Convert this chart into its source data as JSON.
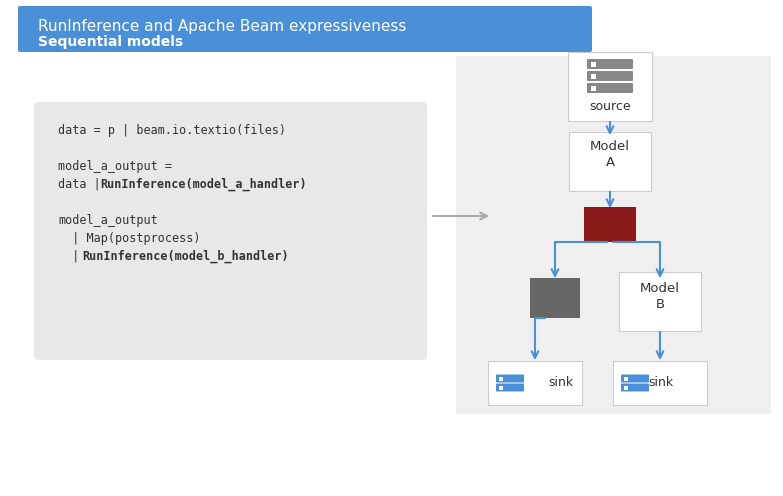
{
  "title_line1": "RunInference and Apache Beam expressiveness",
  "title_line2": "Sequential models",
  "title_bg": "#4A90D9",
  "title_text_color": "#FFFFFF",
  "title_line2_color": "#FFFFFF",
  "main_bg": "#FFFFFF",
  "right_panel_bg": "#EFEFEF",
  "code_bg": "#E8E8E8",
  "code_lines": [
    {
      "text": "data = p | beam.io.textio(files)",
      "bold_parts": []
    },
    {
      "text": "",
      "bold_parts": []
    },
    {
      "text": "",
      "bold_parts": []
    },
    {
      "text": "model_a_output =",
      "bold_parts": []
    },
    {
      "text": "data | RunInference(model_a_handler)",
      "bold_parts": [
        "RunInference(model_a_handler)"
      ]
    },
    {
      "text": "",
      "bold_parts": []
    },
    {
      "text": "",
      "bold_parts": []
    },
    {
      "text": "model_a_output",
      "bold_parts": []
    },
    {
      "text": "| Map(postprocess)",
      "bold_parts": []
    },
    {
      "text": "| RunInference(model_b_handler)",
      "bold_parts": [
        "RunInference(model_b_handler)"
      ]
    }
  ],
  "arrow_color": "#4A90D9",
  "connector_arrow_color": "#999999",
  "source_box_color": "#FFFFFF",
  "model_a_box_color": "#FFFFFF",
  "red_box_color": "#8B1A1A",
  "gray_box_color": "#666666",
  "model_b_box_color": "#FFFFFF",
  "sink_box_color": "#FFFFFF",
  "sink_icon_color": "#4A90D9",
  "source_icon_color": "#777777",
  "text_color": "#333333"
}
